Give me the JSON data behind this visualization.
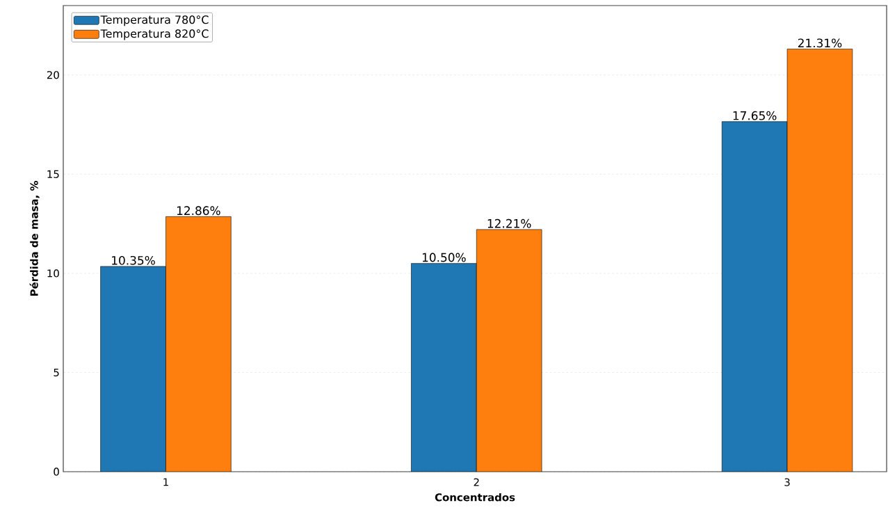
{
  "chart_data": {
    "type": "bar",
    "xlabel": "Concentrados",
    "ylabel": "Pérdida de masa, %",
    "categories": [
      "1",
      "2",
      "3"
    ],
    "series": [
      {
        "name": "Temperatura 780°C",
        "color": "#1f77b4",
        "values": [
          10.35,
          10.5,
          17.65
        ],
        "value_labels": [
          "10.35%",
          "10.50%",
          "17.65%"
        ]
      },
      {
        "name": "Temperatura 820°C",
        "color": "#ff7f0e",
        "values": [
          12.86,
          12.21,
          21.31
        ],
        "value_labels": [
          "12.86%",
          "12.21%",
          "21.31%"
        ]
      }
    ],
    "ylim": [
      0,
      23.5
    ],
    "yticks": [
      0,
      5,
      10,
      15,
      20
    ],
    "grid": "y",
    "legend": "top left"
  }
}
